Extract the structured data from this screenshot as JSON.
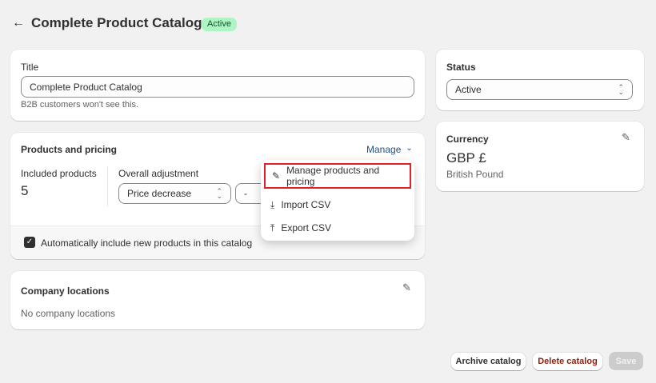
{
  "header": {
    "title": "Complete Product Catalog",
    "badge": "Active",
    "badge_color": "#aff5c4"
  },
  "title_card": {
    "label": "Title",
    "value": "Complete Product Catalog",
    "help": "B2B customers won't see this."
  },
  "products_card": {
    "heading": "Products and pricing",
    "manage_label": "Manage",
    "included_label": "Included products",
    "included_count": "5",
    "adjustment_label": "Overall adjustment",
    "adjustment_type": "Price decrease",
    "adjustment_sign": "-",
    "auto_include_label": "Automatically include new products in this catalog",
    "auto_include_checked": true
  },
  "manage_menu": {
    "items": [
      {
        "label": "Manage products and pricing",
        "icon": "pencil-icon",
        "highlighted": true
      },
      {
        "label": "Import CSV",
        "icon": "download-icon"
      },
      {
        "label": "Export CSV",
        "icon": "upload-icon"
      }
    ],
    "highlight_color": "#e0202c"
  },
  "locations_card": {
    "heading": "Company locations",
    "empty": "No company locations"
  },
  "status_card": {
    "label": "Status",
    "value": "Active"
  },
  "currency_card": {
    "label": "Currency",
    "code": "GBP £",
    "name": "British Pound"
  },
  "footer": {
    "archive": "Archive catalog",
    "delete": "Delete catalog",
    "save": "Save",
    "delete_color": "#8e1f0b"
  }
}
